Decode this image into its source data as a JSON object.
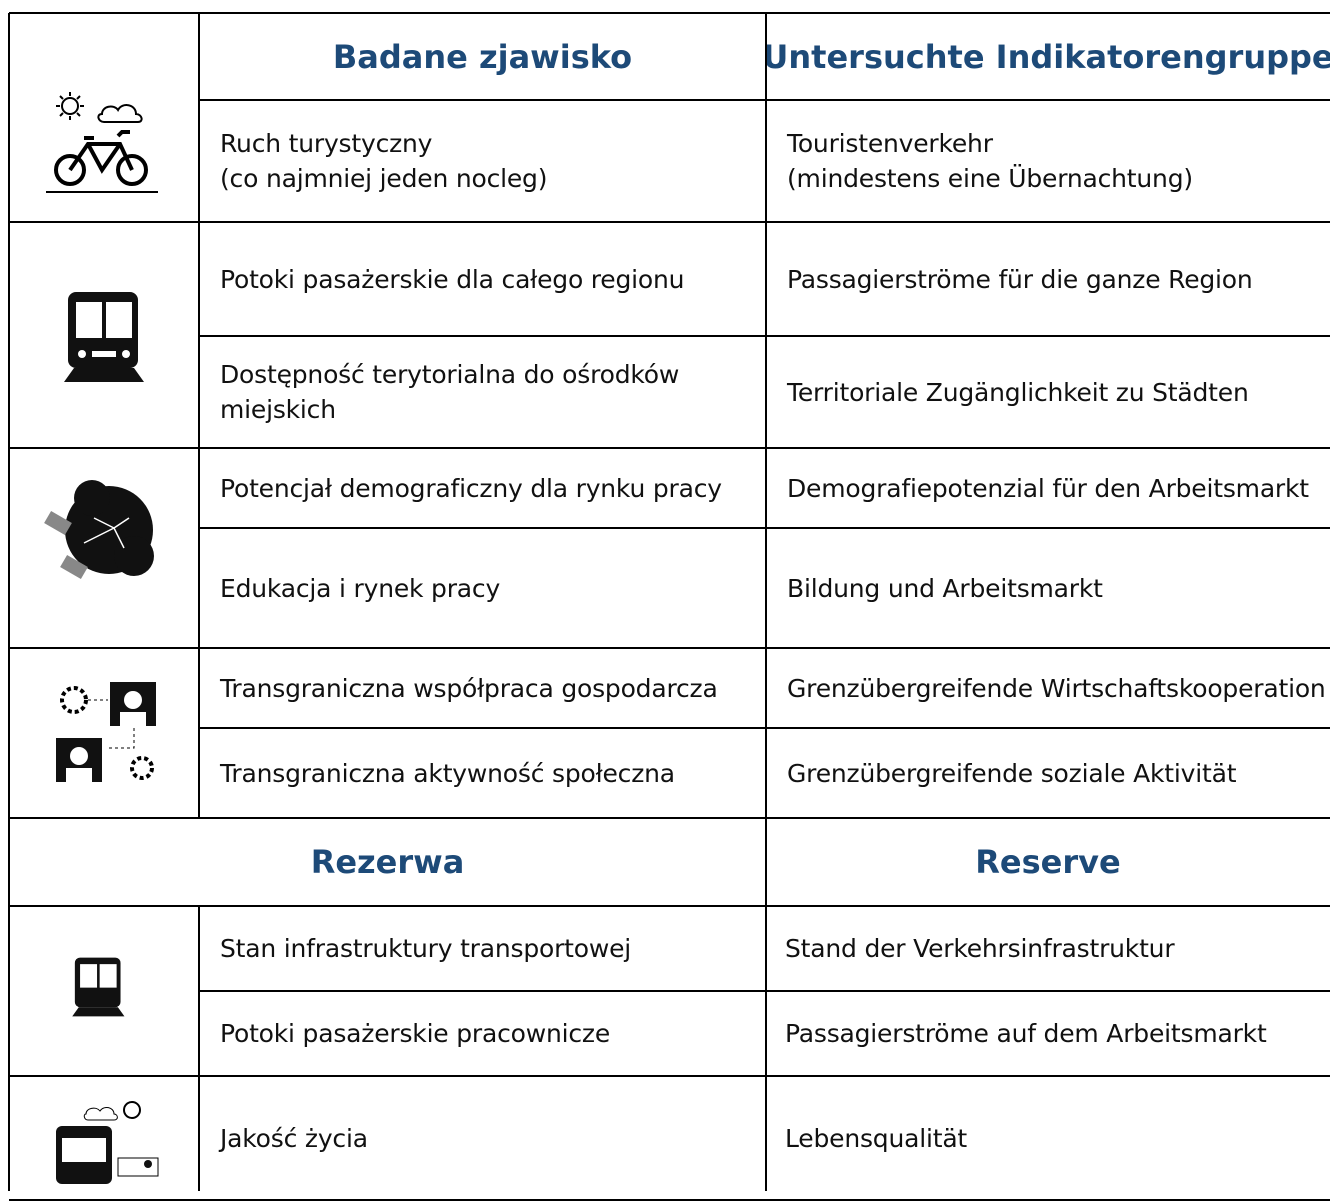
{
  "header": {
    "polish": "Badane zjawisko",
    "german": "Untersuchte Indikatorengruppe"
  },
  "groups": [
    {
      "rows": [
        {
          "polish": [
            "Ruch turystyczny",
            "(co najmniej jeden nocleg)"
          ],
          "german": [
            "Touristenverkehr",
            "(mindestens eine Übernachtung)"
          ]
        }
      ]
    },
    {
      "rows": [
        {
          "polish": [
            "Potoki pasażerskie dla całego regionu"
          ],
          "german": [
            "Passagierströme für die ganze Region"
          ]
        },
        {
          "polish": [
            "Dostępność terytorialna do ośrodków",
            "miejskich"
          ],
          "german": [
            "Territoriale Zugänglichkeit zu Städten"
          ]
        }
      ]
    },
    {
      "rows": [
        {
          "polish": [
            "Potencjał demograficzny dla rynku pracy"
          ],
          "german": [
            "Demografiepotenzial für den Arbeitsmarkt"
          ]
        },
        {
          "polish": [
            "Edukacja i rynek pracy"
          ],
          "german": [
            "Bildung und Arbeitsmarkt"
          ]
        }
      ]
    },
    {
      "rows": [
        {
          "polish": [
            "Transgraniczna współpraca gospodarcza"
          ],
          "german": [
            "Grenzübergreifende Wirtschaftskooperation"
          ]
        },
        {
          "polish": [
            "Transgraniczna aktywność społeczna"
          ],
          "german": [
            "Grenzübergreifende soziale Aktivität"
          ]
        }
      ]
    }
  ],
  "reserve_header": {
    "polish": "Rezerwa",
    "german": "Reserve"
  },
  "reserve_groups": [
    {
      "rows": [
        {
          "polish": [
            "Stan infrastruktury transportowej"
          ],
          "german": [
            "Stand der Verkehrsinfrastruktur"
          ]
        },
        {
          "polish": [
            "Potoki pasażerskie pracownicze"
          ],
          "german": [
            "Passagierströme auf dem Arbeitsmarkt"
          ]
        }
      ]
    },
    {
      "rows": [
        {
          "polish": [
            "Jakość życia"
          ],
          "german": [
            "Lebensqualität"
          ]
        }
      ]
    }
  ]
}
